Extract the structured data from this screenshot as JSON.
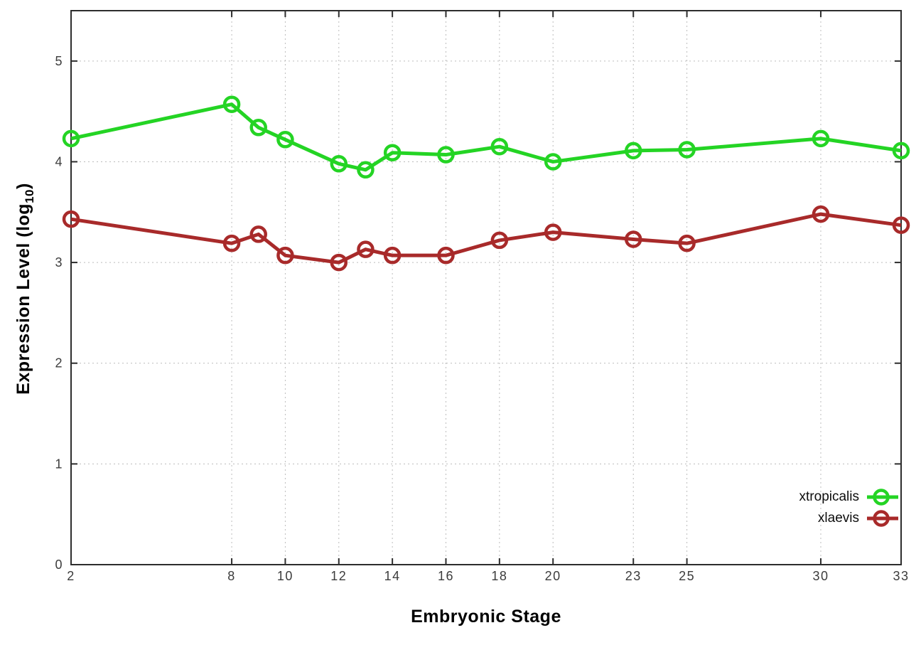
{
  "figure": {
    "background": "#ffffff",
    "border_color": "#2d2d2d",
    "grid_color": "#bcbcbc",
    "tick_label_color": "#3c3c3c"
  },
  "chart_data": {
    "type": "line",
    "title": "",
    "xlabel": "Embryonic Stage",
    "ylabel": "Expression Level (log10)",
    "ylabel_parts": [
      "Expression Level (log",
      "10",
      ")"
    ],
    "xlim": [
      2,
      33
    ],
    "ylim": [
      0,
      5.5
    ],
    "xticks": [
      2,
      8,
      10,
      12,
      14,
      16,
      18,
      20,
      23,
      25,
      30,
      33
    ],
    "yticks": [
      0,
      1,
      2,
      3,
      4,
      5
    ],
    "grid": true,
    "legend_position": "bottom-right",
    "marker": "open-circle",
    "x": [
      2,
      8,
      9,
      10,
      12,
      13,
      14,
      16,
      18,
      20,
      23,
      25,
      30,
      33
    ],
    "series": [
      {
        "name": "xtropicalis",
        "color": "#24d424",
        "values": [
          4.23,
          4.57,
          4.34,
          4.22,
          3.98,
          3.92,
          4.09,
          4.07,
          4.15,
          4.0,
          4.11,
          4.12,
          4.23,
          4.11
        ]
      },
      {
        "name": "xlaevis",
        "color": "#a82a2a",
        "values": [
          3.43,
          3.19,
          3.28,
          3.07,
          3.0,
          3.13,
          3.07,
          3.07,
          3.22,
          3.3,
          3.23,
          3.19,
          3.48,
          3.37
        ]
      }
    ]
  }
}
